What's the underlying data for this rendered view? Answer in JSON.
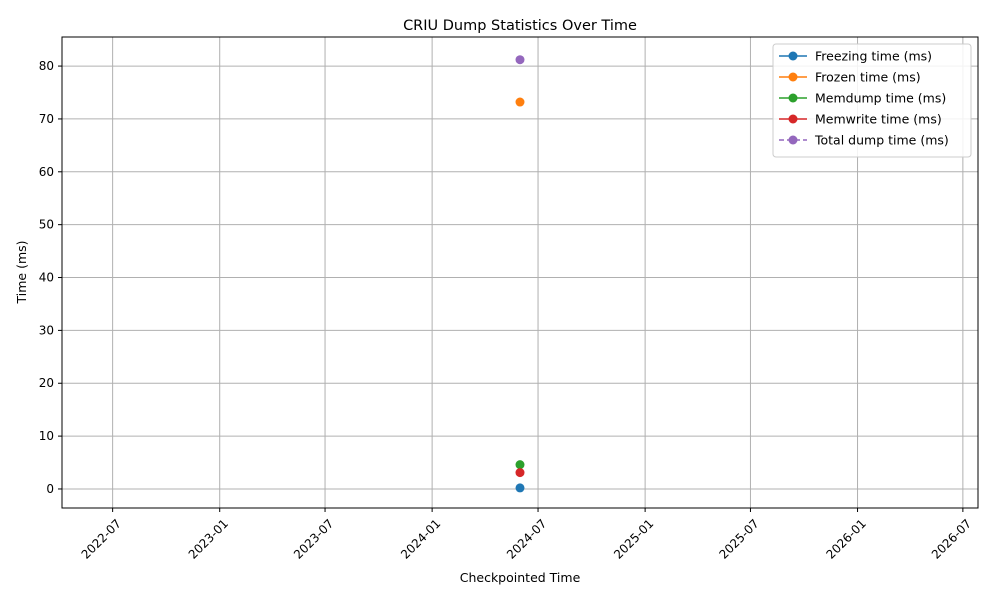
{
  "chart_data": {
    "type": "line",
    "title": "CRIU Dump Statistics Over Time",
    "xlabel": "Checkpointed Time",
    "ylabel": "Time (ms)",
    "x_axis_type": "date",
    "xlim": [
      "2022-04-05",
      "2026-07-27"
    ],
    "ylim": [
      -3.6,
      85.5
    ],
    "x_ticks": [
      "2022-07",
      "2023-01",
      "2023-07",
      "2024-01",
      "2024-07",
      "2025-01",
      "2025-07",
      "2026-01",
      "2026-07"
    ],
    "y_ticks": [
      0,
      10,
      20,
      30,
      40,
      50,
      60,
      70,
      80
    ],
    "grid": true,
    "legend_position": "top-right",
    "series": [
      {
        "name": "Freezing time (ms)",
        "color": "#1f77b4",
        "line_style": "solid",
        "marker": "circle",
        "points": [
          {
            "x": "2024-05-31",
            "y": 0.2
          }
        ]
      },
      {
        "name": "Frozen time (ms)",
        "color": "#ff7f0e",
        "line_style": "solid",
        "marker": "circle",
        "points": [
          {
            "x": "2024-05-31",
            "y": 73.2
          }
        ]
      },
      {
        "name": "Memdump time (ms)",
        "color": "#2ca02c",
        "line_style": "solid",
        "marker": "circle",
        "points": [
          {
            "x": "2024-05-31",
            "y": 4.6
          }
        ]
      },
      {
        "name": "Memwrite time (ms)",
        "color": "#d62728",
        "line_style": "solid",
        "marker": "circle",
        "points": [
          {
            "x": "2024-05-31",
            "y": 3.1
          }
        ]
      },
      {
        "name": "Total dump time (ms)",
        "color": "#9467bd",
        "line_style": "dashed",
        "marker": "circle",
        "points": [
          {
            "x": "2024-05-31",
            "y": 81.2
          }
        ]
      }
    ]
  }
}
